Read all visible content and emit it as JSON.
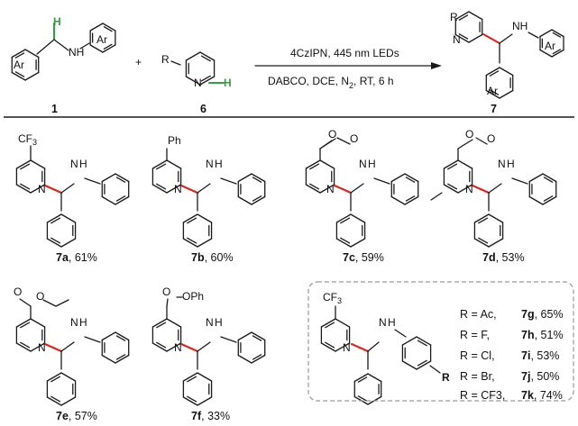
{
  "reaction": {
    "reactant1_label": "1",
    "reactant2_label": "6",
    "product_label": "7",
    "plus": "+",
    "conditions_top": "4CzIPN, 445 nm LEDs",
    "conditions_bottom_pre": "DABCO, DCE, N",
    "conditions_bottom_sub": "2",
    "conditions_bottom_post": ", RT, 6 h",
    "atoms": {
      "ar": "Ar",
      "nh": "NH",
      "n": "N",
      "h": "H",
      "r": "R",
      "n_lower": "N",
      "h_lower": "H"
    }
  },
  "atom_labels": {
    "cf3_c": "CF",
    "cf3_sub": "3",
    "ph": "Ph",
    "o": "O",
    "oph": "OPh",
    "n": "N",
    "h": "H",
    "r": "R"
  },
  "products": [
    {
      "id": "7a",
      "yield": ", 61%"
    },
    {
      "id": "7b",
      "yield": ", 60%"
    },
    {
      "id": "7c",
      "yield": ", 59%"
    },
    {
      "id": "7d",
      "yield": ", 53%"
    },
    {
      "id": "7e",
      "yield": ", 57%"
    },
    {
      "id": "7f",
      "yield": ", 33%"
    }
  ],
  "box_entries": [
    {
      "r": "R = Ac,",
      "id": "7g",
      "yield": ", 65%"
    },
    {
      "r": "R = F,",
      "id": "7h",
      "yield": ", 51%"
    },
    {
      "r": "R = Cl,",
      "id": "7i",
      "yield": ", 53%"
    },
    {
      "r": "R = Br,",
      "id": "7j",
      "yield": ", 50%"
    },
    {
      "r": "R = CF3,",
      "id": "7k",
      "yield": ", 74%"
    }
  ]
}
